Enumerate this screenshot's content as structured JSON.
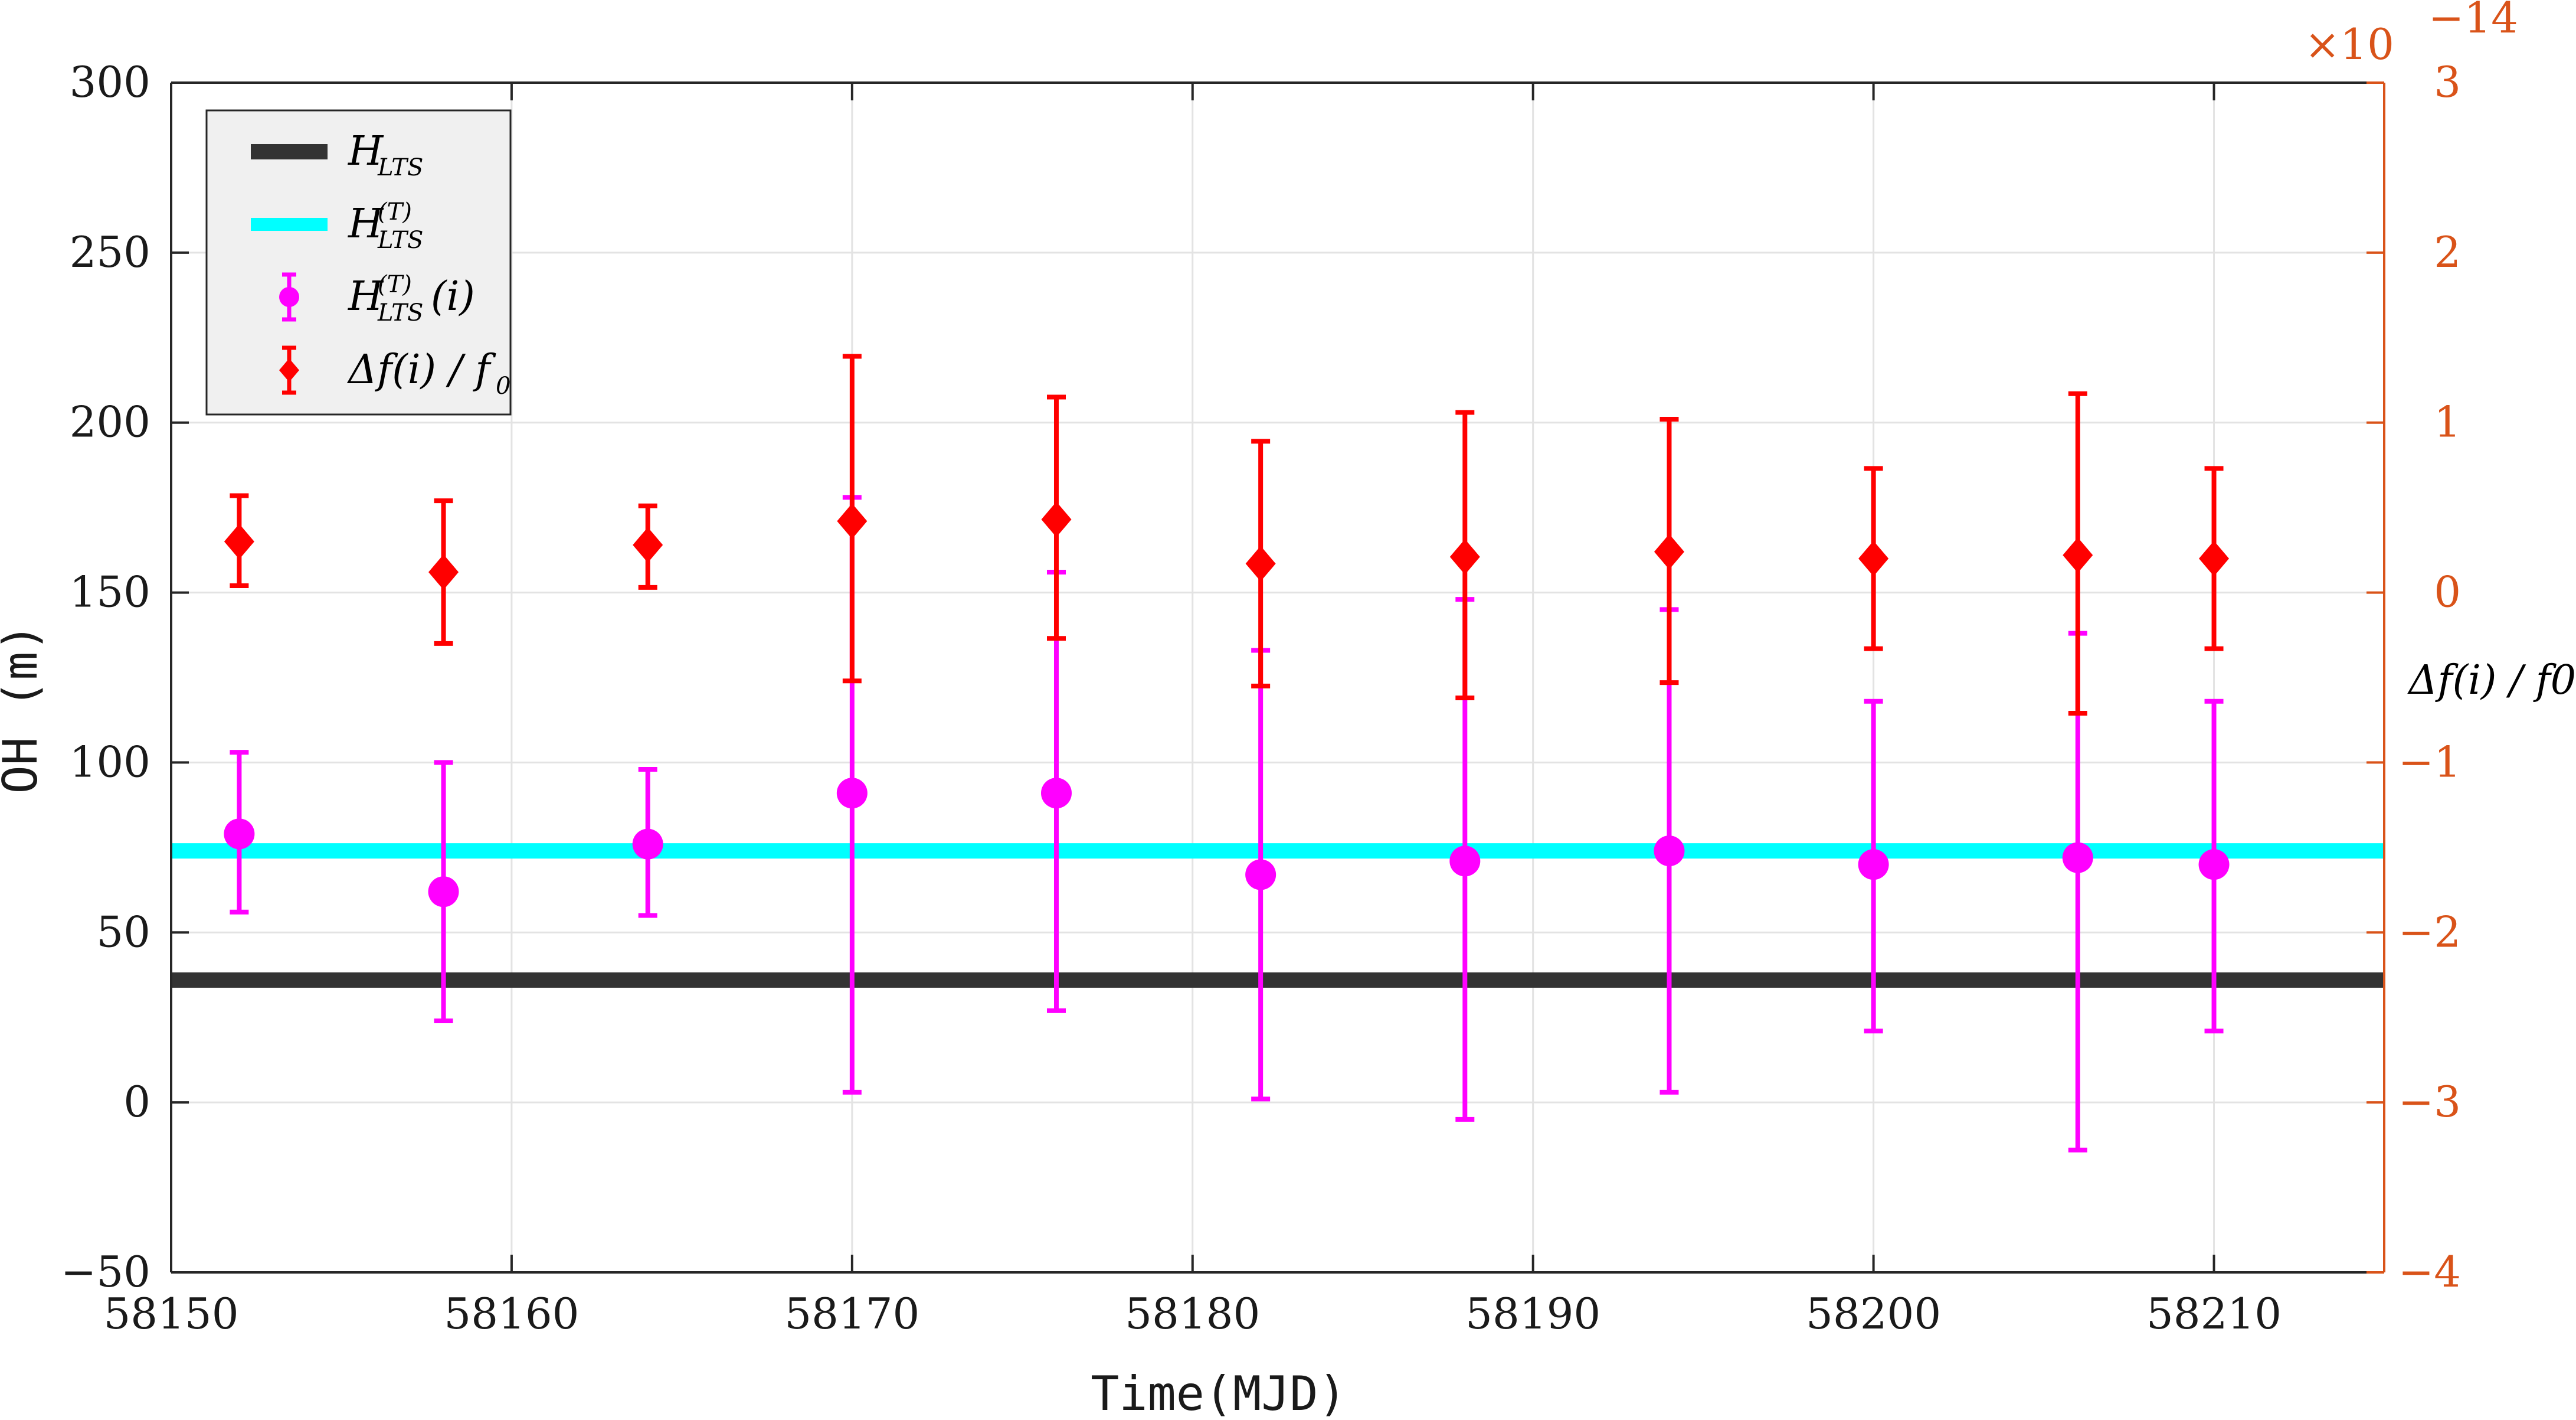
{
  "chart_data": {
    "type": "scatter",
    "xlabel": "Time(MJD)",
    "ylabel": "OH (m)",
    "y2label": "Δf(i) / f0",
    "y2exponent": "×10",
    "y2exponent_power": "−14",
    "xlim": [
      58150,
      58215
    ],
    "ylim": [
      -50,
      300
    ],
    "y2lim": [
      -4,
      3
    ],
    "xticks": [
      58150,
      58160,
      58170,
      58180,
      58190,
      58200,
      58210
    ],
    "yticks": [
      -50,
      0,
      50,
      100,
      150,
      200,
      250,
      300
    ],
    "y2ticks": [
      -4,
      -3,
      -2,
      -1,
      0,
      1,
      2,
      3
    ],
    "ytick_labels": [
      "−50",
      "0",
      "50",
      "100",
      "150",
      "200",
      "250",
      "300"
    ],
    "y2tick_labels": [
      "−4",
      "−3",
      "−2",
      "−1",
      "0",
      "1",
      "2",
      "3"
    ],
    "grid": true,
    "legend_position": "top-left",
    "colors": {
      "h_lts": "#333333",
      "h_lts_t": "#00ffff",
      "h_lts_t_i": "#ff00ff",
      "delta_f": "#ff0000",
      "right_axis": "#d95319"
    },
    "legend": [
      {
        "base": "H",
        "sub": "LTS",
        "sup": "",
        "suffix": ""
      },
      {
        "base": "H",
        "sub": "LTS",
        "sup": "(T)",
        "suffix": ""
      },
      {
        "base": "H",
        "sub": "LTS",
        "sup": "(T)",
        "suffix": "(i)"
      },
      {
        "base": "Δf(i) / f",
        "sub": "0",
        "sup": "",
        "suffix": ""
      }
    ],
    "series": [
      {
        "kind": "hline",
        "y": 36
      },
      {
        "kind": "hline",
        "y": 74
      },
      {
        "kind": "errorbar",
        "axis": "left",
        "x": [
          58152,
          58158,
          58164,
          58170,
          58176,
          58182,
          58188,
          58194,
          58200,
          58206,
          58210
        ],
        "y": [
          79,
          62,
          76,
          91,
          91,
          67,
          71,
          74,
          70,
          72,
          70
        ],
        "lower": [
          56,
          24,
          55,
          3,
          27,
          1,
          -5,
          3,
          21,
          -14,
          21
        ],
        "upper": [
          103,
          100,
          98,
          178,
          156,
          133,
          148,
          145,
          118,
          138,
          118
        ]
      },
      {
        "kind": "errorbar",
        "axis": "right",
        "x": [
          58152,
          58158,
          58164,
          58170,
          58176,
          58182,
          58188,
          58194,
          58200,
          58206,
          58210
        ],
        "y": [
          0.3,
          0.12,
          0.28,
          0.42,
          0.43,
          0.17,
          0.21,
          0.24,
          0.2,
          0.22,
          0.2
        ],
        "lower": [
          0.04,
          -0.3,
          0.03,
          -0.52,
          -0.27,
          -0.55,
          -0.62,
          -0.53,
          -0.33,
          -0.71,
          -0.33
        ],
        "upper": [
          0.57,
          0.54,
          0.51,
          1.39,
          1.15,
          0.89,
          1.06,
          1.02,
          0.73,
          1.17,
          0.73
        ]
      }
    ]
  }
}
